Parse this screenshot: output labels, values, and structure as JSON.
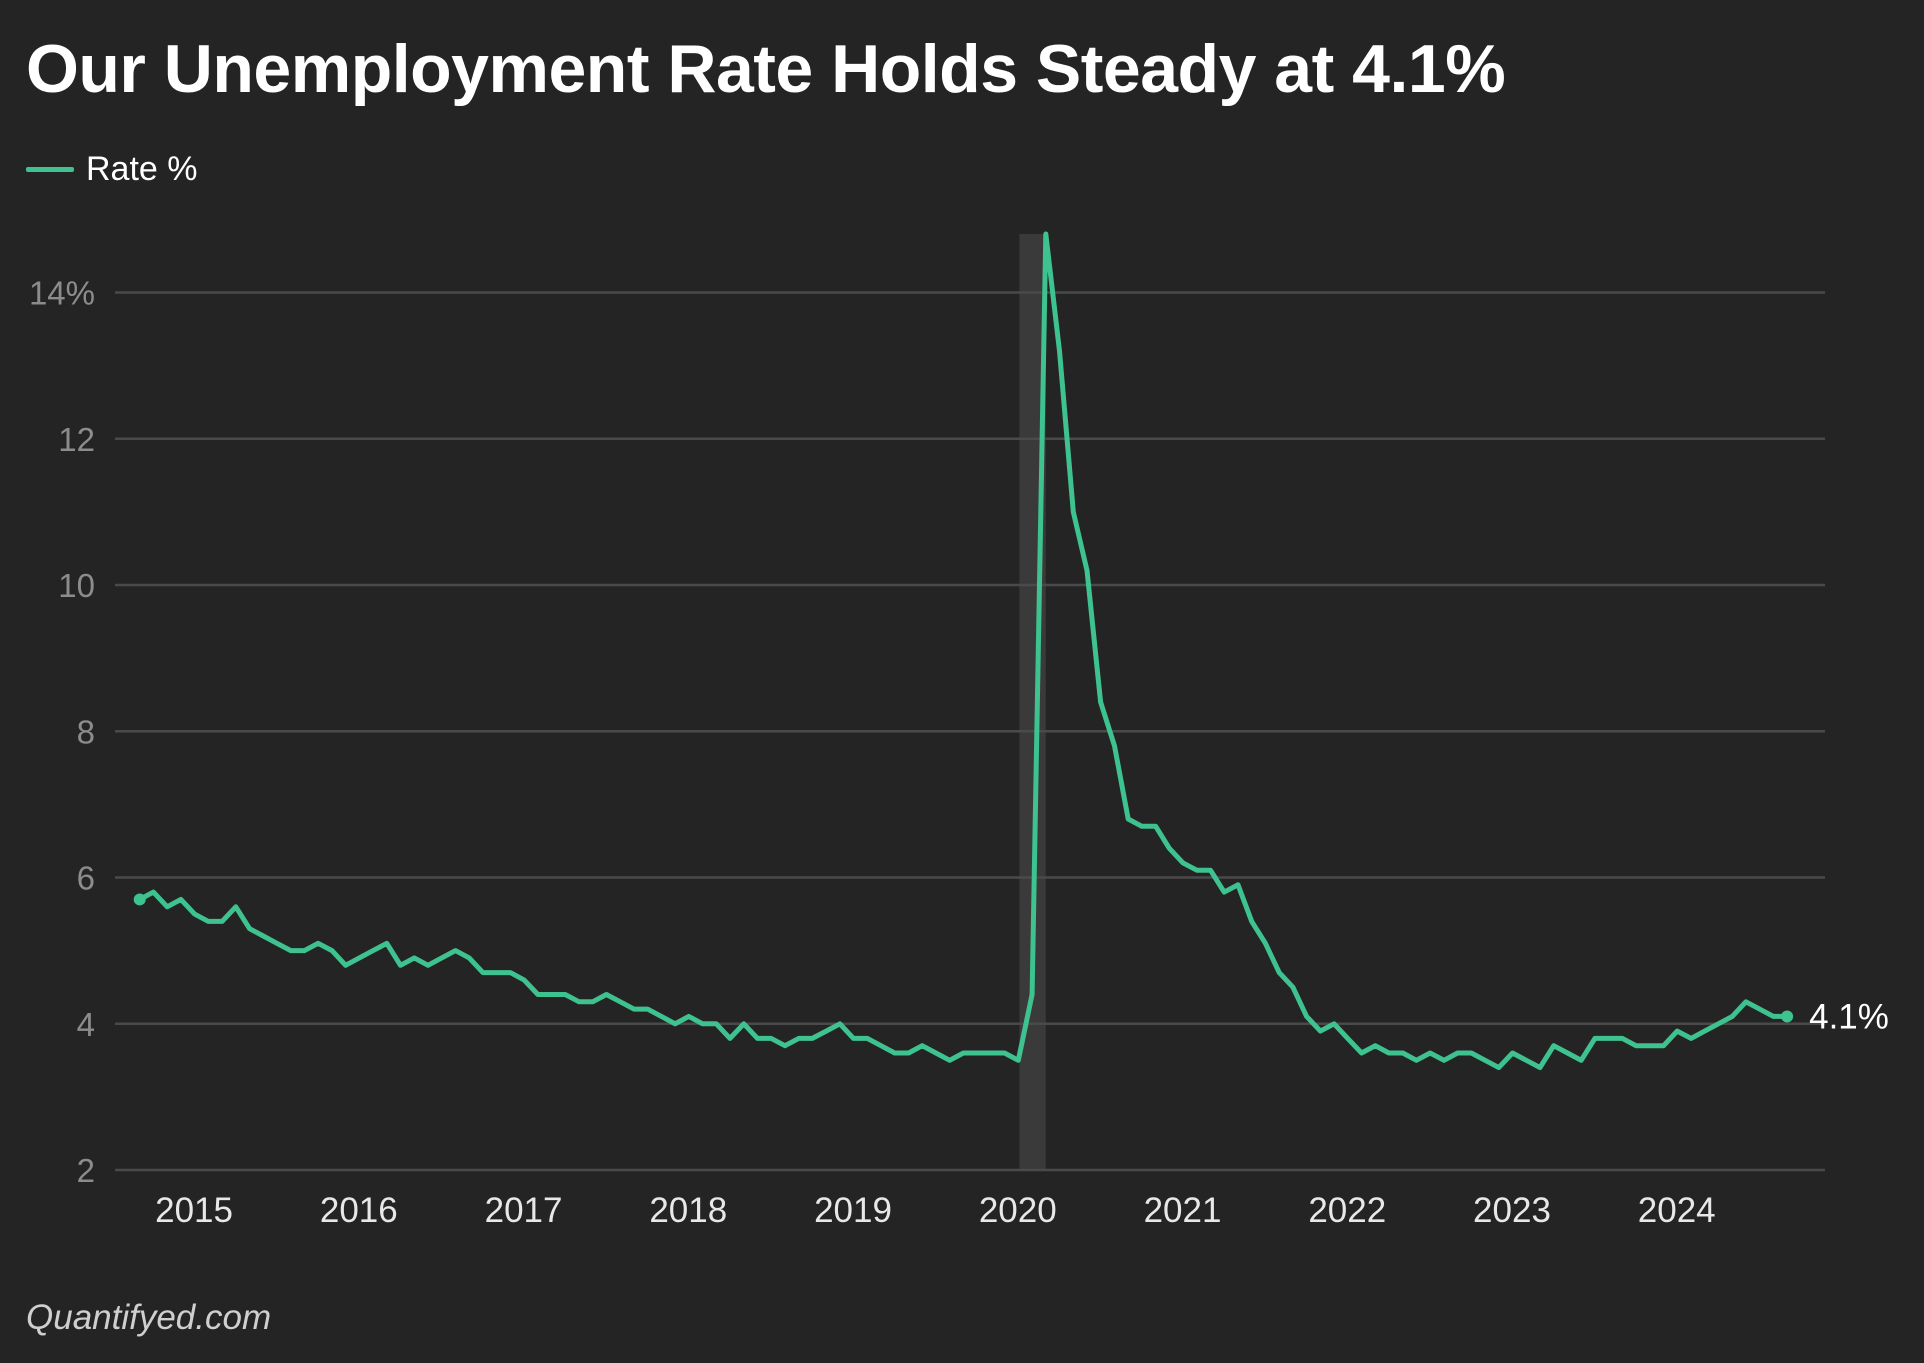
{
  "header": {
    "title": "Our Unemployment Rate Holds Steady at 4.1%"
  },
  "legend": {
    "label": "Rate %"
  },
  "source": "Quantifyed.com",
  "colors": {
    "line": "#3ec28f",
    "grid": "#4a4a4a",
    "shade": "#3a3a3a",
    "background": "#242424"
  },
  "chart_data": {
    "type": "line",
    "title": "Our Unemployment Rate Holds Steady at 4.1%",
    "xlabel": "",
    "ylabel": "",
    "ylim": [
      2,
      14.8
    ],
    "yticks": [
      2,
      4,
      6,
      8,
      10,
      12,
      14
    ],
    "ytick_labels": [
      "2",
      "4",
      "6",
      "8",
      "10",
      "12",
      "14%"
    ],
    "xticks": [
      2015,
      2016,
      2017,
      2018,
      2019,
      2020,
      2021,
      2022,
      2023,
      2024
    ],
    "xtick_labels": [
      "2015",
      "2016",
      "2017",
      "2018",
      "2019",
      "2020",
      "2021",
      "2022",
      "2023",
      "2024"
    ],
    "xlim": [
      2014.6,
      2024.98
    ],
    "grid": true,
    "legend_position": "top-left",
    "shaded_ranges": [
      [
        2020.09,
        2020.25
      ]
    ],
    "end_label": "4.1%",
    "series": [
      {
        "name": "Rate %",
        "x": [
          2014.75,
          2014.833,
          2014.917,
          2015.0,
          2015.083,
          2015.167,
          2015.25,
          2015.333,
          2015.417,
          2015.5,
          2015.583,
          2015.667,
          2015.75,
          2015.833,
          2015.917,
          2016.0,
          2016.083,
          2016.167,
          2016.25,
          2016.333,
          2016.417,
          2016.5,
          2016.583,
          2016.667,
          2016.75,
          2016.833,
          2016.917,
          2017.0,
          2017.083,
          2017.167,
          2017.25,
          2017.333,
          2017.417,
          2017.5,
          2017.583,
          2017.667,
          2017.75,
          2017.833,
          2017.917,
          2018.0,
          2018.083,
          2018.167,
          2018.25,
          2018.333,
          2018.417,
          2018.5,
          2018.583,
          2018.667,
          2018.75,
          2018.833,
          2018.917,
          2019.0,
          2019.083,
          2019.167,
          2019.25,
          2019.333,
          2019.417,
          2019.5,
          2019.583,
          2019.667,
          2019.75,
          2019.833,
          2019.917,
          2020.0,
          2020.083,
          2020.167,
          2020.25,
          2020.333,
          2020.417,
          2020.5,
          2020.583,
          2020.667,
          2020.75,
          2020.833,
          2020.917,
          2021.0,
          2021.083,
          2021.167,
          2021.25,
          2021.333,
          2021.417,
          2021.5,
          2021.583,
          2021.667,
          2021.75,
          2021.833,
          2021.917,
          2022.0,
          2022.083,
          2022.167,
          2022.25,
          2022.333,
          2022.417,
          2022.5,
          2022.583,
          2022.667,
          2022.75,
          2022.833,
          2022.917,
          2023.0,
          2023.083,
          2023.167,
          2023.25,
          2023.333,
          2023.417,
          2023.5,
          2023.583,
          2023.667,
          2023.75,
          2023.833,
          2023.917,
          2024.0,
          2024.083,
          2024.167,
          2024.25,
          2024.333,
          2024.417,
          2024.5,
          2024.583,
          2024.667,
          2024.75
        ],
        "values": [
          5.7,
          5.8,
          5.6,
          5.7,
          5.5,
          5.4,
          5.4,
          5.6,
          5.3,
          5.2,
          5.1,
          5.0,
          5.0,
          5.1,
          5.0,
          4.8,
          4.9,
          5.0,
          5.1,
          4.8,
          4.9,
          4.8,
          4.9,
          5.0,
          4.9,
          4.7,
          4.7,
          4.7,
          4.6,
          4.4,
          4.4,
          4.4,
          4.3,
          4.3,
          4.4,
          4.3,
          4.2,
          4.2,
          4.1,
          4.0,
          4.1,
          4.0,
          4.0,
          3.8,
          4.0,
          3.8,
          3.8,
          3.7,
          3.8,
          3.8,
          3.9,
          4.0,
          3.8,
          3.8,
          3.7,
          3.6,
          3.6,
          3.7,
          3.6,
          3.5,
          3.6,
          3.6,
          3.6,
          3.6,
          3.5,
          4.4,
          14.8,
          13.2,
          11.0,
          10.2,
          8.4,
          7.8,
          6.8,
          6.7,
          6.7,
          6.4,
          6.2,
          6.1,
          6.1,
          5.8,
          5.9,
          5.4,
          5.1,
          4.7,
          4.5,
          4.1,
          3.9,
          4.0,
          3.8,
          3.6,
          3.7,
          3.6,
          3.6,
          3.5,
          3.6,
          3.5,
          3.6,
          3.6,
          3.5,
          3.4,
          3.6,
          3.5,
          3.4,
          3.7,
          3.6,
          3.5,
          3.8,
          3.8,
          3.8,
          3.7,
          3.7,
          3.7,
          3.9,
          3.8,
          3.9,
          4.0,
          4.1,
          4.3,
          4.2,
          4.1,
          4.1
        ]
      }
    ]
  }
}
